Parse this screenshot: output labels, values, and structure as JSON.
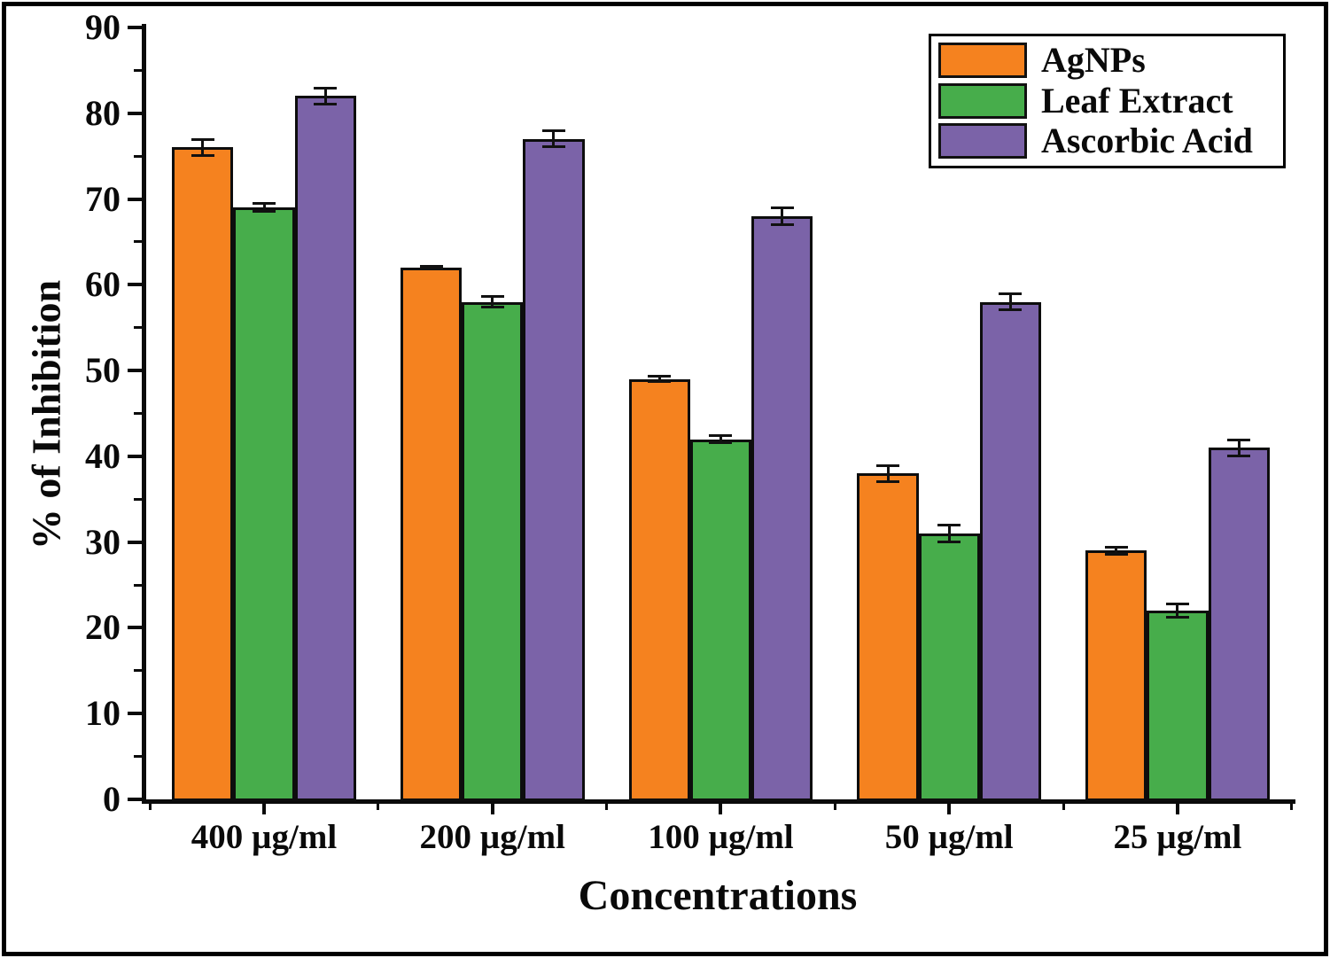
{
  "chart_data": {
    "type": "bar",
    "title": "",
    "xlabel": "Concentrations",
    "ylabel": "% of Inhibition",
    "categories": [
      "400 µg/ml",
      "200 µg/ml",
      "100 µg/ml",
      "50 µg/ml",
      "25 µg/ml"
    ],
    "series": [
      {
        "name": "AgNPs",
        "color": "#F5821F",
        "values": [
          76,
          62,
          49,
          38,
          29
        ],
        "errors": [
          1.0,
          0.25,
          0.35,
          1.0,
          0.5
        ]
      },
      {
        "name": "Leaf Extract",
        "color": "#47AD4B",
        "values": [
          69,
          58,
          42,
          31,
          22
        ],
        "errors": [
          0.5,
          0.7,
          0.5,
          1.0,
          0.8
        ]
      },
      {
        "name": "Ascorbic Acid",
        "color": "#7B63A8",
        "values": [
          82,
          77,
          68,
          58,
          41
        ],
        "errors": [
          1.0,
          1.0,
          1.0,
          1.0,
          1.0
        ]
      }
    ],
    "ylim": [
      0,
      90
    ],
    "y_major_ticks": [
      0,
      10,
      20,
      30,
      40,
      50,
      60,
      70,
      80,
      90
    ],
    "y_minor_ticks": [
      5,
      15,
      25,
      35,
      45,
      55,
      65,
      75,
      85
    ],
    "grid": false,
    "legend_position": "top-right",
    "error_bars": true,
    "bar_border_color": "#0d0d0d",
    "axis_color": "#0a0a0a",
    "background_color": "#ffffff",
    "frame_color": "#000000"
  }
}
